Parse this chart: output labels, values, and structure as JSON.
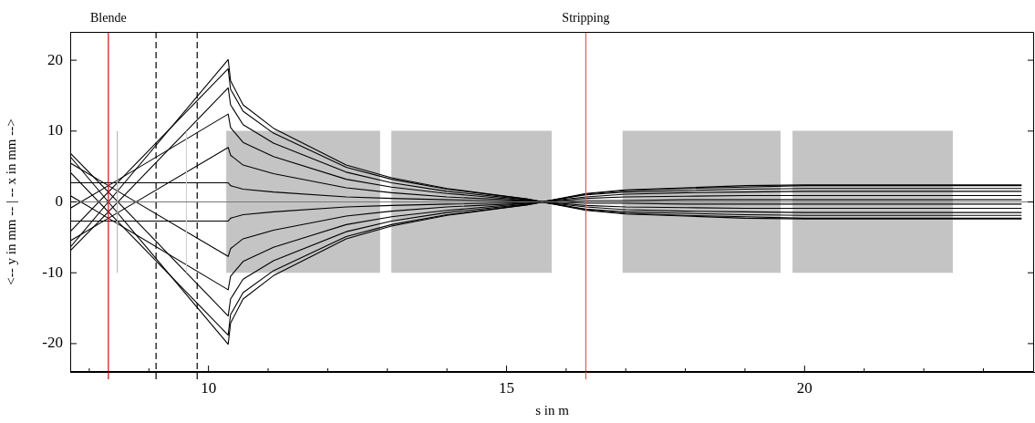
{
  "chart_data": {
    "type": "line",
    "xlabel": "s in m",
    "ylabel": "<-- y in mm -- | -- x in mm -->",
    "x": [
      7.68,
      8.32,
      10.33,
      10.37,
      10.58,
      11.09,
      12.31,
      13.07,
      14,
      15.35,
      16.33,
      17,
      18,
      19,
      20,
      23.64
    ],
    "xlim": [
      7.68,
      23.85
    ],
    "ylim": [
      -24,
      24
    ],
    "xticks": [
      {
        "value": 8,
        "label": null
      },
      {
        "value": 9,
        "label": null
      },
      10,
      {
        "value": 11,
        "label": null
      },
      {
        "value": 12,
        "label": null
      },
      {
        "value": 13,
        "label": null
      },
      {
        "value": 14,
        "label": null
      },
      15,
      {
        "value": 16,
        "label": null
      },
      {
        "value": 17,
        "label": null
      },
      {
        "value": 18,
        "label": null
      },
      {
        "value": 19,
        "label": null
      },
      20,
      {
        "value": 21,
        "label": null
      },
      {
        "value": 22,
        "label": null
      },
      {
        "value": 23,
        "label": null
      }
    ],
    "yticks": [
      -20,
      -10,
      0,
      10,
      20
    ],
    "legend": false,
    "marker": "none",
    "line_style": "solid",
    "series": [
      {
        "type": "area",
        "color": "#c4c4c4",
        "x": [
          10.3,
          10.3,
          12.87,
          12.87
        ],
        "values": [
          -10,
          10,
          10,
          -10
        ]
      },
      {
        "type": "area",
        "color": "#c4c4c4",
        "x": [
          13.07,
          13.07,
          15.75,
          15.75
        ],
        "values": [
          -10,
          10,
          10,
          -10
        ]
      },
      {
        "type": "area",
        "color": "#c4c4c4",
        "x": [
          16.95,
          16.95,
          19.59,
          19.59
        ],
        "values": [
          -10,
          10,
          10,
          -10
        ]
      },
      {
        "type": "area",
        "color": "#c4c4c4",
        "x": [
          19.8,
          19.8,
          22.48,
          22.48
        ],
        "values": [
          -10,
          10,
          10,
          -10
        ]
      },
      {
        "type": "line",
        "color": "#b4b4b4",
        "x": [
          8.47,
          8.47
        ],
        "values": [
          -10,
          10
        ]
      },
      {
        "type": "line",
        "color": "#d0d0d0",
        "x": [
          9.63,
          9.63
        ],
        "values": [
          -10,
          10
        ]
      },
      {
        "color": "#000000",
        "values": [
          2.7,
          2.7,
          2.7,
          2.3,
          1.8,
          1.4,
          0.7,
          0.5,
          0.3,
          0.1,
          -0.2,
          -0.2,
          -0.3,
          -0.3,
          -0.3,
          -0.3
        ]
      },
      {
        "color": "#000000",
        "values": [
          -0.9,
          2.3,
          12.4,
          10.5,
          8.4,
          6.4,
          3.2,
          2.1,
          1.2,
          0.2,
          -0.7,
          -1.1,
          -1.3,
          -1.4,
          -1.5,
          -1.5
        ]
      },
      {
        "color": "#000000",
        "values": [
          -4.2,
          1.4,
          18.8,
          15.9,
          12.8,
          9.7,
          4.9,
          3.2,
          1.8,
          0.4,
          -1.1,
          -1.6,
          -1.9,
          -2.1,
          -2.3,
          -2.3
        ]
      },
      {
        "color": "#000000",
        "values": [
          -6.4,
          0,
          20.1,
          17.1,
          13.7,
          10.4,
          5.2,
          3.4,
          1.9,
          0.4,
          -1.2,
          -1.7,
          -2.0,
          -2.3,
          -2.4,
          -2.4
        ]
      },
      {
        "color": "#000000",
        "values": [
          -6.9,
          -1.4,
          16.1,
          13.7,
          10.9,
          8.3,
          4.2,
          2.7,
          1.5,
          0.3,
          -1.0,
          -1.4,
          -1.6,
          -1.8,
          -1.9,
          -1.9
        ]
      },
      {
        "color": "#000000",
        "values": [
          -5.5,
          -2.3,
          7.7,
          6.6,
          5.2,
          4.0,
          2.0,
          1.3,
          0.7,
          0.2,
          -0.5,
          -0.7,
          -0.8,
          -0.9,
          -0.9,
          -0.9
        ]
      },
      {
        "color": "#000000",
        "values": [
          -2.7,
          -2.7,
          -2.7,
          -2.3,
          -1.8,
          -1.4,
          -0.7,
          -0.5,
          -0.3,
          -0.1,
          0.2,
          0.2,
          0.3,
          0.3,
          0.3,
          0.3
        ]
      },
      {
        "color": "#000000",
        "values": [
          0.9,
          -2.3,
          -12.4,
          -10.5,
          -8.4,
          -6.4,
          -3.2,
          -2.1,
          -1.2,
          -0.2,
          0.7,
          1.1,
          1.3,
          1.4,
          1.5,
          1.5
        ]
      },
      {
        "color": "#000000",
        "values": [
          4.2,
          -1.4,
          -18.8,
          -15.9,
          -12.8,
          -9.7,
          -4.9,
          -3.2,
          -1.8,
          -0.4,
          1.1,
          1.6,
          1.9,
          2.1,
          2.3,
          2.3
        ]
      },
      {
        "color": "#000000",
        "values": [
          6.4,
          0,
          -20.1,
          -17.1,
          -13.7,
          -10.4,
          -5.2,
          -3.4,
          -1.9,
          -0.4,
          1.2,
          1.7,
          2.0,
          2.3,
          2.4,
          2.4
        ]
      },
      {
        "color": "#000000",
        "values": [
          6.9,
          1.4,
          -16.1,
          -13.7,
          -10.9,
          -8.3,
          -4.2,
          -2.7,
          -1.5,
          -0.3,
          1.0,
          1.4,
          1.6,
          1.8,
          1.9,
          1.9
        ]
      },
      {
        "color": "#000000",
        "values": [
          5.5,
          2.3,
          -7.7,
          -6.6,
          -5.2,
          -4.0,
          -2.0,
          -1.3,
          -0.7,
          -0.2,
          0.5,
          0.7,
          0.8,
          0.9,
          0.9,
          0.9
        ]
      }
    ],
    "ref_lines": [
      {
        "axis": "x",
        "value": 8.32,
        "label": "Blende",
        "color": "#d01010",
        "line_style": "solid"
      },
      {
        "axis": "x",
        "value": 9.12,
        "color": "#000000",
        "line_style": "dashed"
      },
      {
        "axis": "x",
        "value": 9.81,
        "color": "#000000",
        "line_style": "dashed"
      },
      {
        "axis": "x",
        "value": 16.33,
        "label": "Stripping",
        "color": "#ee5555",
        "line_style": "solid"
      },
      {
        "axis": "y",
        "value": 0,
        "color": "#777777",
        "line_style": "solid"
      }
    ]
  }
}
